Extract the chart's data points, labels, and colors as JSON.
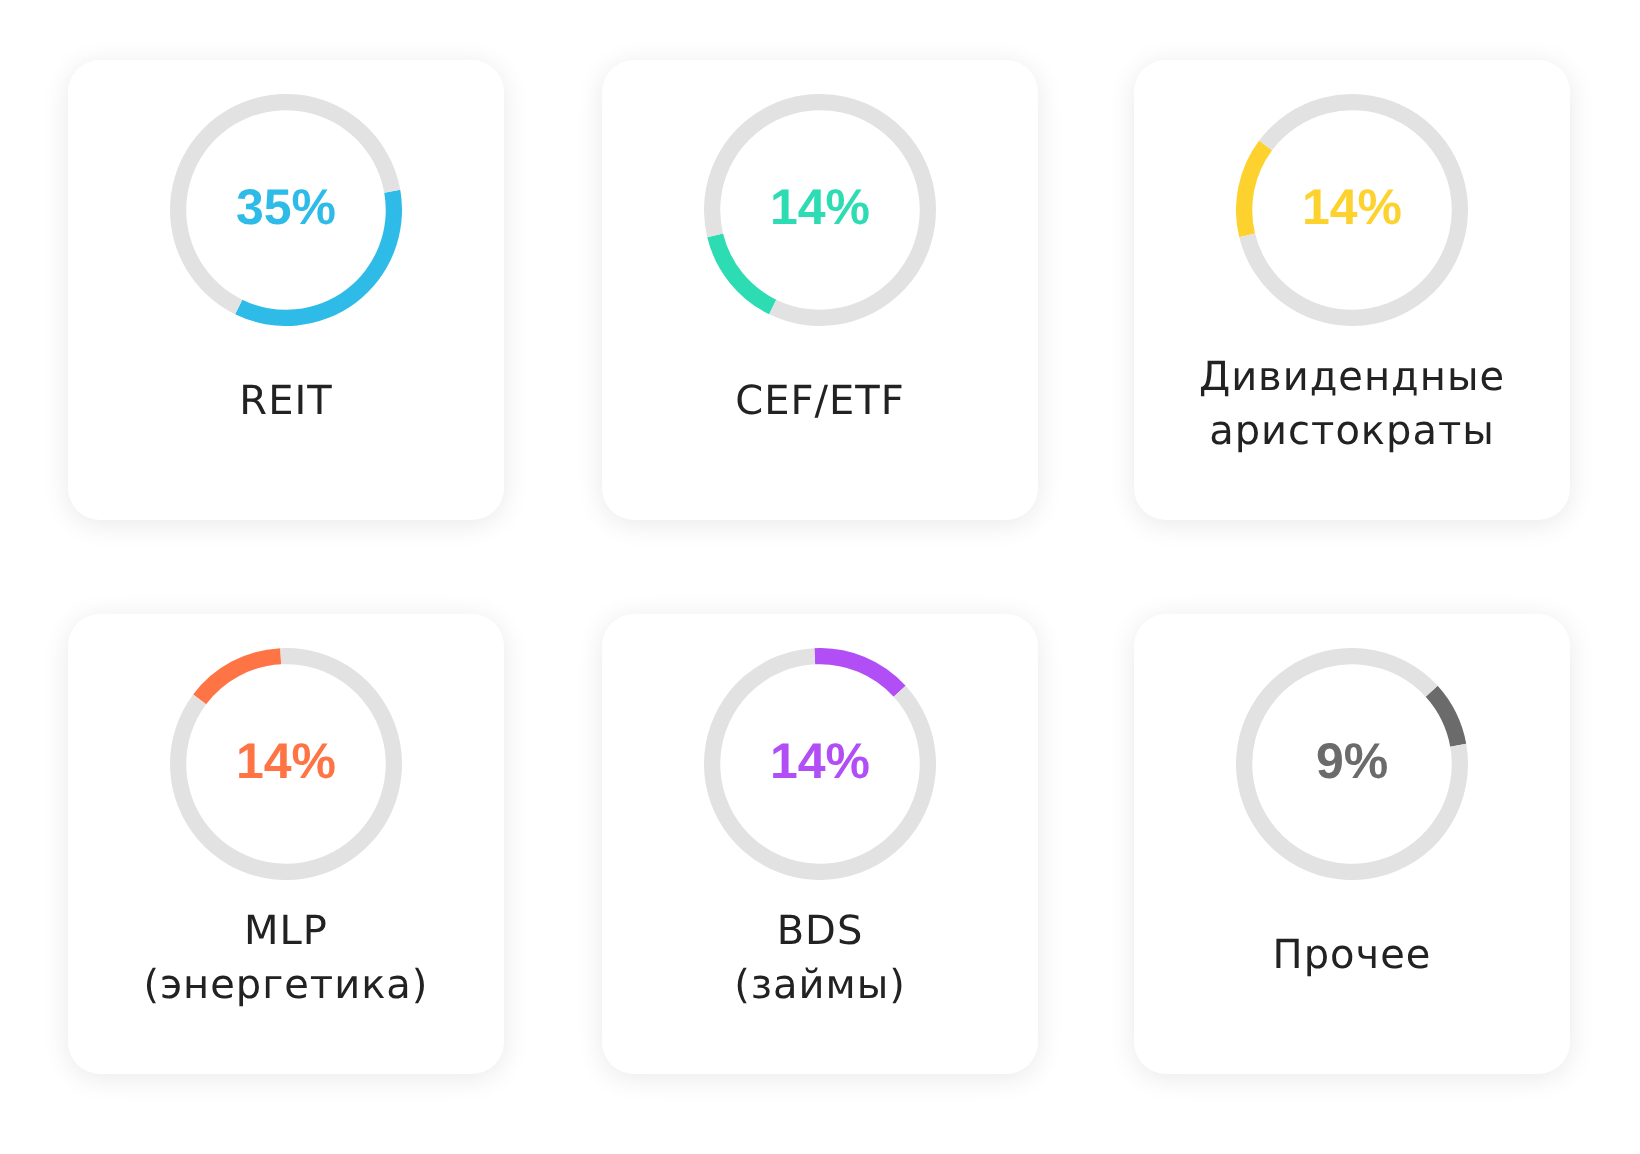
{
  "chart_data": [
    {
      "type": "donut",
      "title": "REIT",
      "categories": [
        null,
        null
      ],
      "values": [
        35,
        65
      ],
      "colors": [
        "#2ebbe8",
        "#e2e2e2"
      ],
      "annotations": [
        "35%"
      ]
    },
    {
      "type": "donut",
      "title": "CEF/ETF",
      "categories": [
        null,
        null
      ],
      "values": [
        14,
        86
      ],
      "colors": [
        "#2edcb4",
        "#e2e2e2"
      ],
      "annotations": [
        "14%"
      ]
    },
    {
      "type": "donut",
      "title": "Дивидендные аристократы",
      "categories": [
        null,
        null
      ],
      "values": [
        14,
        86
      ],
      "colors": [
        "#fdd22e",
        "#e2e2e2"
      ],
      "annotations": [
        "14%"
      ]
    },
    {
      "type": "donut",
      "title": "MLP\n(энергетика)",
      "categories": [
        null,
        null
      ],
      "values": [
        14,
        86
      ],
      "colors": [
        "#ff7444",
        "#e2e2e2"
      ],
      "annotations": [
        "14%"
      ]
    },
    {
      "type": "donut",
      "title": "BDS\n(займы)",
      "categories": [
        null,
        null
      ],
      "values": [
        14,
        86
      ],
      "colors": [
        "#b24ef6",
        "#e2e2e2"
      ],
      "annotations": [
        "14%"
      ]
    },
    {
      "type": "donut",
      "title": "Прочее",
      "categories": [
        null,
        null
      ],
      "values": [
        9,
        91
      ],
      "colors": [
        "#6b6b6b",
        "#e2e2e2"
      ],
      "annotations": [
        "9%"
      ]
    }
  ]
}
